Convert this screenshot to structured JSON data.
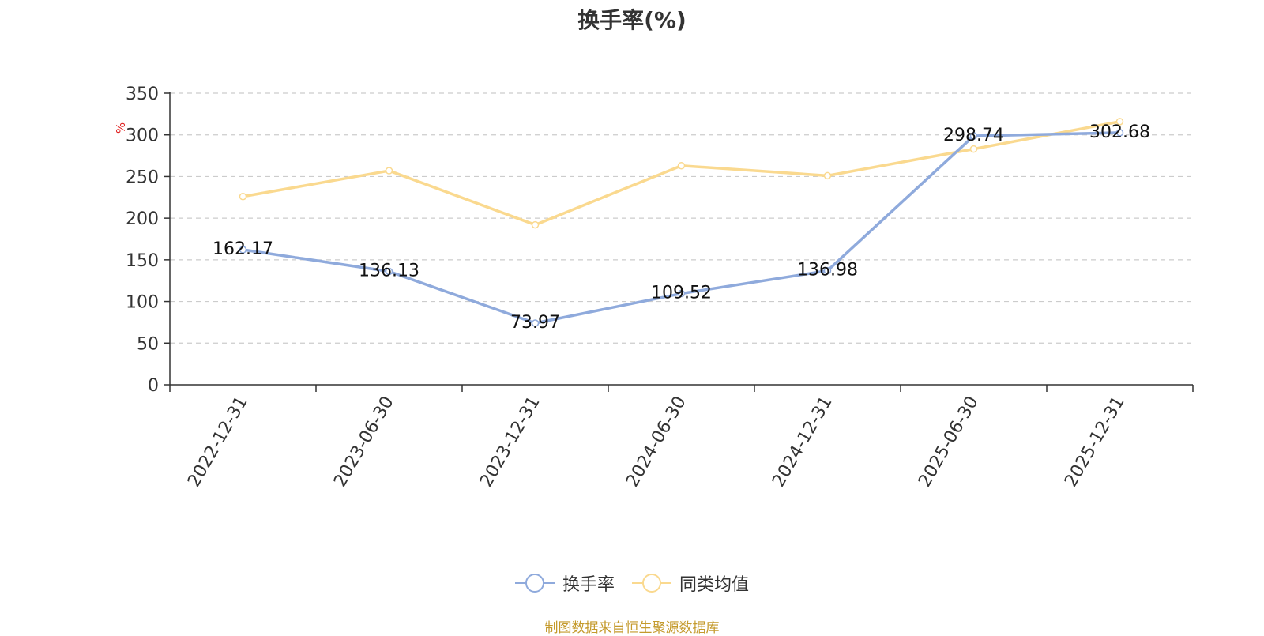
{
  "chart_data": {
    "type": "line",
    "title": "换手率(%)",
    "ylabel": "%",
    "ylim": [
      0,
      350
    ],
    "yticks": [
      0,
      50,
      100,
      150,
      200,
      250,
      300,
      350
    ],
    "categories": [
      "2022-12-31",
      "2023-06-30",
      "2023-12-31",
      "2024-06-30",
      "2024-12-31",
      "2025-06-30",
      "2025-12-31"
    ],
    "series": [
      {
        "name": "换手率",
        "color": "#8FAADC",
        "values": [
          162.17,
          136.13,
          73.97,
          109.52,
          136.98,
          298.74,
          302.68
        ],
        "labels": [
          "162.17",
          "136.13",
          "73.97",
          "109.52",
          "136.98",
          "298.74",
          "302.68"
        ]
      },
      {
        "name": "同类均值",
        "color": "#FAD98F",
        "values": [
          226,
          257,
          192,
          263,
          251,
          283,
          316
        ]
      }
    ],
    "grid": true,
    "legend": "bottom-center"
  },
  "source_text": "制图数据来自恒生聚源数据库",
  "colors": {
    "source": "#C49A2C",
    "ylabel": "#E02020"
  }
}
